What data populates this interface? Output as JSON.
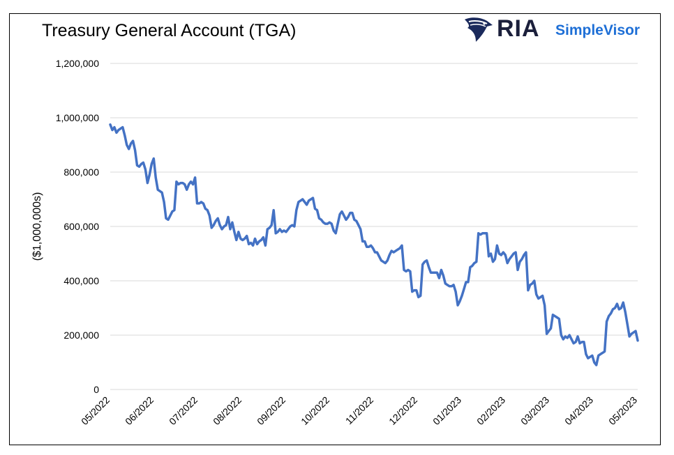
{
  "chart_data": {
    "type": "line",
    "title": "Treasury General Account (TGA)",
    "xlabel": "",
    "ylabel": "($1,000,000s)",
    "ylim": [
      0,
      1200000
    ],
    "yticks": [
      0,
      200000,
      400000,
      600000,
      800000,
      1000000,
      1200000
    ],
    "ytick_labels": [
      "0",
      "200,000",
      "400,000",
      "600,000",
      "800,000",
      "1,000,000",
      "1,200,000"
    ],
    "xtick_labels": [
      "05/2022",
      "06/2022",
      "07/2022",
      "08/2022",
      "09/2022",
      "10/2022",
      "11/2022",
      "12/2022",
      "01/2023",
      "02/2023",
      "03/2023",
      "04/2023",
      "05/2023"
    ],
    "grid": "horizontal",
    "line_color": "#4472C4",
    "series": [
      {
        "values": [
          975000,
          955000,
          965000,
          945000,
          955000,
          960000,
          965000,
          935000,
          900000,
          885000,
          905000,
          915000,
          880000,
          825000,
          820000,
          830000,
          835000,
          810000,
          760000,
          790000,
          830000,
          850000,
          780000,
          735000,
          730000,
          725000,
          690000,
          630000,
          625000,
          640000,
          655000,
          660000,
          765000,
          755000,
          760000,
          760000,
          755000,
          735000,
          755000,
          765000,
          755000,
          780000,
          685000,
          685000,
          690000,
          685000,
          665000,
          660000,
          640000,
          595000,
          605000,
          620000,
          630000,
          605000,
          590000,
          600000,
          605000,
          635000,
          590000,
          615000,
          580000,
          550000,
          580000,
          555000,
          550000,
          555000,
          565000,
          535000,
          540000,
          530000,
          555000,
          535000,
          545000,
          550000,
          560000,
          530000,
          590000,
          595000,
          605000,
          660000,
          575000,
          580000,
          590000,
          580000,
          585000,
          580000,
          590000,
          600000,
          605000,
          600000,
          660000,
          690000,
          695000,
          700000,
          690000,
          680000,
          695000,
          700000,
          705000,
          665000,
          660000,
          630000,
          625000,
          615000,
          610000,
          610000,
          615000,
          610000,
          585000,
          575000,
          610000,
          645000,
          655000,
          640000,
          625000,
          635000,
          650000,
          650000,
          625000,
          620000,
          605000,
          590000,
          545000,
          545000,
          525000,
          525000,
          530000,
          520000,
          505000,
          505000,
          490000,
          475000,
          470000,
          465000,
          475000,
          495000,
          510000,
          505000,
          510000,
          515000,
          520000,
          530000,
          440000,
          435000,
          440000,
          435000,
          360000,
          365000,
          365000,
          340000,
          345000,
          460000,
          470000,
          475000,
          450000,
          430000,
          430000,
          430000,
          430000,
          410000,
          440000,
          420000,
          390000,
          385000,
          380000,
          380000,
          385000,
          360000,
          310000,
          325000,
          345000,
          370000,
          395000,
          395000,
          450000,
          455000,
          465000,
          470000,
          575000,
          570000,
          575000,
          575000,
          575000,
          490000,
          500000,
          470000,
          480000,
          530000,
          500000,
          495000,
          505000,
          495000,
          465000,
          480000,
          490000,
          500000,
          505000,
          440000,
          470000,
          480000,
          495000,
          505000,
          365000,
          385000,
          390000,
          400000,
          350000,
          335000,
          340000,
          345000,
          310000,
          205000,
          215000,
          225000,
          275000,
          270000,
          265000,
          260000,
          200000,
          185000,
          195000,
          190000,
          200000,
          185000,
          170000,
          175000,
          195000,
          170000,
          175000,
          175000,
          130000,
          115000,
          120000,
          125000,
          100000,
          90000,
          125000,
          130000,
          135000,
          140000,
          250000,
          270000,
          280000,
          295000,
          300000,
          315000,
          295000,
          300000,
          320000,
          285000,
          240000,
          195000,
          205000,
          210000,
          215000,
          180000
        ]
      }
    ]
  },
  "logo": {
    "brand": "RIA",
    "product": "SimpleVisor"
  }
}
